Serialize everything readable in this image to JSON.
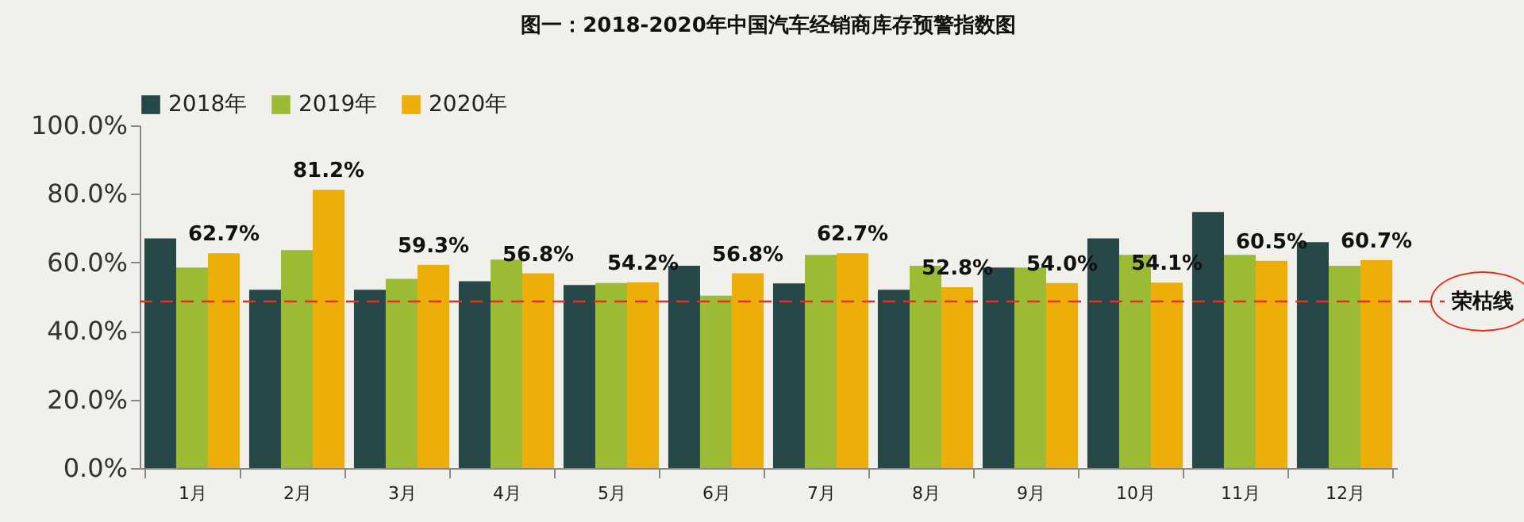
{
  "chart_data": {
    "type": "bar",
    "title": "图一：2018-2020年中国汽车经销商库存预警指数图",
    "categories": [
      "1月",
      "2月",
      "3月",
      "4月",
      "5月",
      "6月",
      "7月",
      "8月",
      "9月",
      "10月",
      "11月",
      "12月"
    ],
    "series": [
      {
        "name": "2018年",
        "color": "#264848",
        "values": [
          67.0,
          52.0,
          52.0,
          54.5,
          53.4,
          59.0,
          53.9,
          52.0,
          58.5,
          67.0,
          74.7,
          65.9
        ]
      },
      {
        "name": "2019年",
        "color": "#9bbb35",
        "values": [
          58.5,
          63.6,
          55.2,
          60.8,
          54.0,
          50.3,
          62.2,
          59.0,
          58.5,
          62.2,
          62.2,
          59.0
        ]
      },
      {
        "name": "2020年",
        "color": "#eeae0a",
        "values": [
          62.7,
          81.2,
          59.3,
          56.8,
          54.2,
          56.8,
          62.7,
          52.8,
          54.0,
          54.1,
          60.5,
          60.7
        ],
        "value_labels": [
          "62.7%",
          "81.2%",
          "59.3%",
          "56.8%",
          "54.2%",
          "56.8%",
          "62.7%",
          "52.8%",
          "54.0%",
          "54.1%",
          "60.5%",
          "60.7%"
        ]
      }
    ],
    "ylim": [
      0,
      100
    ],
    "yticks": [
      {
        "value": 0,
        "label": "0.0%"
      },
      {
        "value": 20,
        "label": "20.0%"
      },
      {
        "value": 40,
        "label": "40.0%"
      },
      {
        "value": 60,
        "label": "60.0%"
      },
      {
        "value": 80,
        "label": "80.0%"
      },
      {
        "value": 100,
        "label": "100.0%"
      }
    ],
    "ref_lines": [
      {
        "axis": "y",
        "value": 48.6,
        "label": "荣枯线",
        "color": "#e0301e",
        "line_style": "dashed"
      }
    ],
    "legend": "top",
    "grid": false
  }
}
